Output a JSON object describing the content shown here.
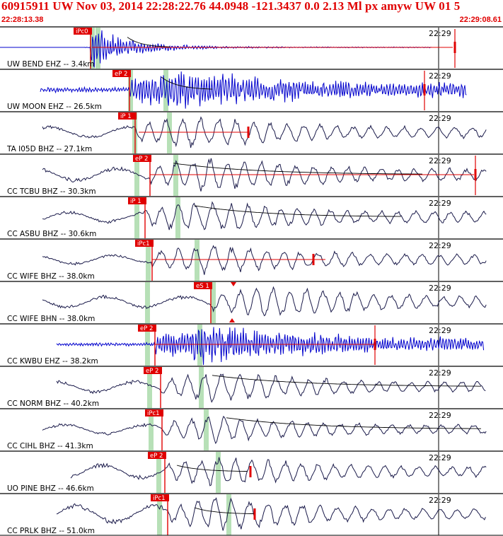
{
  "header": {
    "title": "60915911 UW Nov 03, 2014 22:28:22.76    44.0948 -121.3437  0.0 2.13 Ml px amyw UW 01    5",
    "start_time": "22:28:13.38",
    "end_time": "22:29:08.61"
  },
  "colors": {
    "header_text": "#e00000",
    "trace_bhz": "#1a1a4a",
    "trace_ehz": "#0000cc",
    "pick": "#e00000",
    "window_bar": "#b7e0b7",
    "coda": "#000000"
  },
  "chart_data": {
    "type": "seismogram",
    "time_axis": {
      "start": "22:28:13.38",
      "end": "22:29:08.61",
      "minute_mark": "22:29"
    },
    "channels": [
      {
        "label": "UW BEND EHZ -- 3.4km",
        "pick": "iPc0",
        "kind": "EHZ"
      },
      {
        "label": "UW MOON EHZ -- 26.5km",
        "pick": "eP 2",
        "kind": "EHZ"
      },
      {
        "label": "TA I05D BHZ -- 27.1km",
        "pick": "iP 1",
        "kind": "BHZ"
      },
      {
        "label": "CC TCBU BHZ -- 30.3km",
        "pick": "eP 2",
        "kind": "BHZ"
      },
      {
        "label": "CC ASBU BHZ -- 30.6km",
        "pick": "iP 1",
        "kind": "BHZ"
      },
      {
        "label": "CC WIFE BHZ -- 38.0km",
        "pick": "iPc1",
        "kind": "BHZ"
      },
      {
        "label": "CC WIFE BHN -- 38.0km",
        "pick": "eS 1",
        "kind": "BHN"
      },
      {
        "label": "CC KWBU EHZ -- 38.2km",
        "pick": "eP 2",
        "kind": "EHZ"
      },
      {
        "label": "CC NORM BHZ -- 40.2km",
        "pick": "eP 2",
        "kind": "BHZ"
      },
      {
        "label": "CC CIHL BHZ -- 41.3km",
        "pick": "iPc1",
        "kind": "BHZ"
      },
      {
        "label": "UO PINE BHZ -- 46.6km",
        "pick": "eP 2",
        "kind": "BHZ"
      },
      {
        "label": "CC PRLK BHZ -- 51.0km",
        "pick": "iPc1",
        "kind": "BHZ"
      }
    ]
  }
}
